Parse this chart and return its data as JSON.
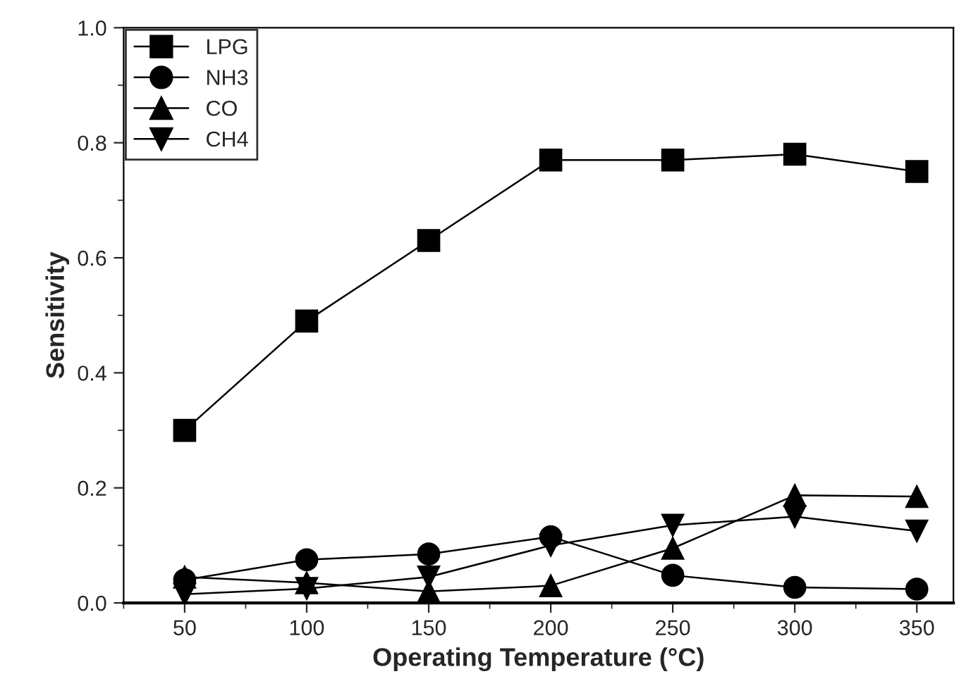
{
  "chart_data": {
    "type": "line",
    "xlabel": "Operating Temperature (°C)",
    "ylabel": "Sensitivity",
    "x": [
      50,
      100,
      150,
      200,
      250,
      300,
      350
    ],
    "series": [
      {
        "name": "LPG",
        "color": "#000000",
        "marker": "square",
        "values": [
          0.3,
          0.49,
          0.63,
          0.77,
          0.77,
          0.78,
          0.75
        ]
      },
      {
        "name": "NH3",
        "color": "#000000",
        "marker": "circle",
        "values": [
          0.04,
          0.075,
          0.085,
          0.115,
          0.048,
          0.027,
          0.024
        ]
      },
      {
        "name": "CO",
        "color": "#000000",
        "marker": "triangle",
        "values": [
          0.045,
          0.035,
          0.02,
          0.03,
          0.095,
          0.187,
          0.185
        ]
      },
      {
        "name": "CH4",
        "color": "#000000",
        "marker": "triangle_down",
        "values": [
          0.015,
          0.025,
          0.045,
          0.1,
          0.135,
          0.15,
          0.125
        ]
      }
    ],
    "xlim": [
      25,
      365
    ],
    "xticks": [
      50,
      100,
      150,
      200,
      250,
      300,
      350
    ],
    "ylim": [
      0,
      1.0
    ],
    "yticks": [
      {
        "value": 0,
        "label": "0.0"
      },
      0.2,
      0.4,
      0.6,
      0.8,
      {
        "value": 1.0,
        "label": "1.0"
      }
    ],
    "grid": false,
    "legend": "top left",
    "line_style": "solid"
  }
}
